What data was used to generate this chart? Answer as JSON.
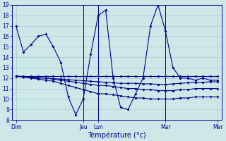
{
  "bg_color": "#cce8e8",
  "line_color": "#00008B",
  "grid_color": "#aacccc",
  "xlabel": "Température (°c)",
  "ylim": [
    8,
    19
  ],
  "yticks": [
    8,
    9,
    10,
    11,
    12,
    13,
    14,
    15,
    16,
    17,
    18,
    19
  ],
  "x_day_positions": [
    0,
    9,
    11,
    20,
    27
  ],
  "x_day_labels": [
    "Dim",
    "Jeu",
    "Lun",
    "Mar",
    "Mer"
  ],
  "series_main": [
    17,
    14.5,
    15.2,
    16.0,
    16.2,
    15.0,
    13.5,
    10.2,
    8.5,
    10.0,
    14.3,
    18.0,
    18.5,
    12.0,
    9.2,
    9.0,
    10.5,
    12.0,
    17.0,
    19.0,
    16.5,
    13.0,
    12.0,
    12.0,
    11.8,
    12.0,
    11.8,
    11.8
  ],
  "series_2": [
    12.2,
    12.1,
    12.0,
    11.9,
    11.8,
    11.7,
    11.5,
    11.3,
    11.1,
    10.9,
    10.7,
    10.5,
    10.5,
    10.4,
    10.3,
    10.2,
    10.1,
    10.1,
    10.0,
    10.0,
    10.0,
    10.0,
    10.1,
    10.1,
    10.2,
    10.2,
    10.2,
    10.2
  ],
  "series_3": [
    12.2,
    12.1,
    12.1,
    12.0,
    12.0,
    11.9,
    11.8,
    11.7,
    11.6,
    11.5,
    11.4,
    11.3,
    11.3,
    11.2,
    11.1,
    11.0,
    11.0,
    10.9,
    10.9,
    10.8,
    10.8,
    10.8,
    10.9,
    10.9,
    11.0,
    11.0,
    11.0,
    11.0
  ],
  "series_4": [
    12.2,
    12.15,
    12.1,
    12.05,
    12.0,
    11.95,
    11.9,
    11.85,
    11.8,
    11.75,
    11.7,
    11.65,
    11.6,
    11.55,
    11.5,
    11.5,
    11.5,
    11.45,
    11.45,
    11.4,
    11.4,
    11.45,
    11.5,
    11.55,
    11.6,
    11.6,
    11.65,
    11.65
  ],
  "series_5": [
    12.2,
    12.2,
    12.2,
    12.2,
    12.2,
    12.2,
    12.2,
    12.2,
    12.2,
    12.2,
    12.2,
    12.2,
    12.2,
    12.2,
    12.2,
    12.2,
    12.2,
    12.2,
    12.2,
    12.2,
    12.2,
    12.2,
    12.2,
    12.2,
    12.2,
    12.2,
    12.2,
    12.2
  ],
  "n_points": 28,
  "vline_positions": [
    9,
    11,
    20
  ]
}
